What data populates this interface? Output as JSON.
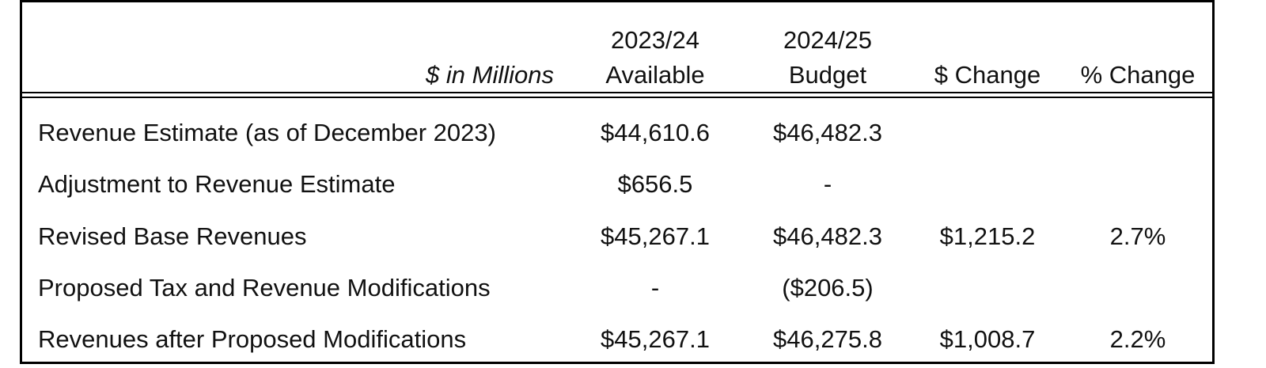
{
  "table": {
    "units_label": "$ in Millions",
    "columns": [
      {
        "line1": "2023/24",
        "line2": "Available"
      },
      {
        "line1": "2024/25",
        "line2": "Budget"
      },
      {
        "line1": "",
        "line2": "$ Change"
      },
      {
        "line1": "",
        "line2": "% Change"
      }
    ],
    "rows": [
      {
        "label": "Revenue Estimate (as of December 2023)",
        "available": "$44,610.6",
        "budget": "$46,482.3",
        "change": "",
        "pct": ""
      },
      {
        "label": "Adjustment to Revenue Estimate",
        "available": "$656.5",
        "budget": "-",
        "change": "",
        "pct": ""
      },
      {
        "label": "Revised Base Revenues",
        "available": "$45,267.1",
        "budget": "$46,482.3",
        "change": "$1,215.2",
        "pct": "2.7%"
      },
      {
        "label": "Proposed Tax and Revenue Modifications",
        "available": "-",
        "budget": "($206.5)",
        "change": "",
        "pct": ""
      },
      {
        "label": "Revenues after Proposed Modifications",
        "available": "$45,267.1",
        "budget": "$46,275.8",
        "change": "$1,008.7",
        "pct": "2.2%"
      }
    ]
  }
}
